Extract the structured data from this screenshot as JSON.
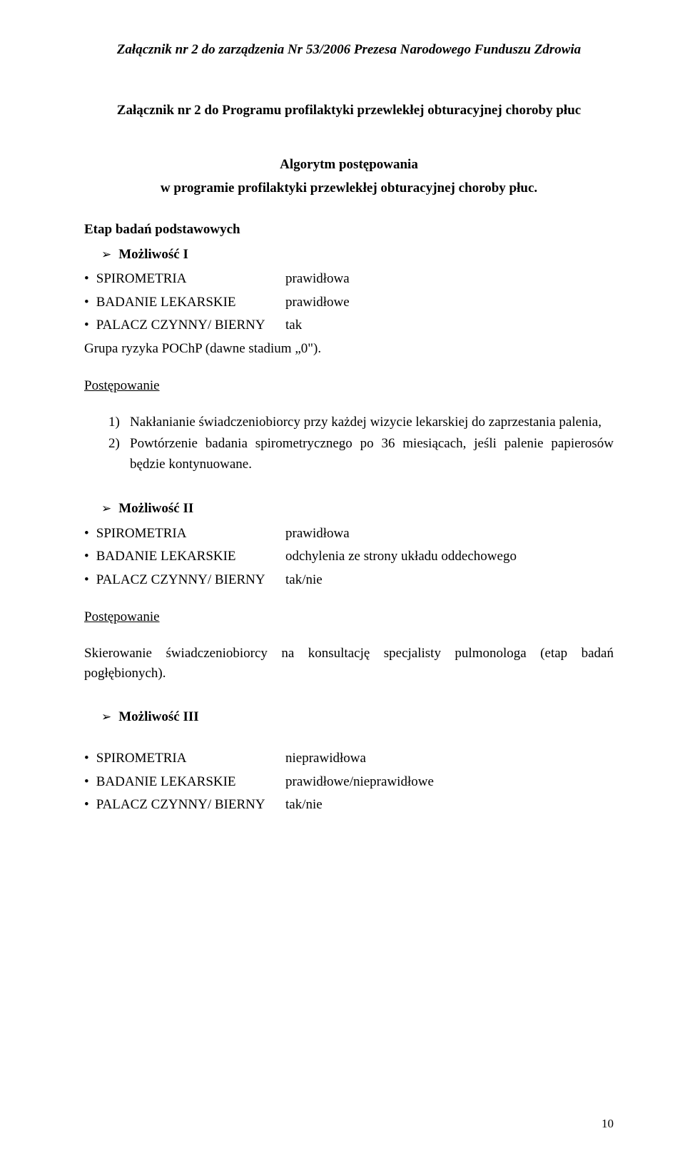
{
  "header": "Załącznik nr 2 do zarządzenia Nr 53/2006 Prezesa Narodowego Funduszu Zdrowia",
  "subheader": "Załącznik nr 2 do Programu profilaktyki przewlekłej obturacyjnej choroby płuc",
  "algo": {
    "title": "Algorytm postępowania",
    "subtitle": "w programie profilaktyki przewlekłej obturacyjnej choroby płuc."
  },
  "stage_heading": "Etap badań podstawowych",
  "options": {
    "opt1": {
      "label": "Możliwość I",
      "rows": [
        {
          "k": "SPIROMETRIA",
          "v": "prawidłowa"
        },
        {
          "k": "BADANIE LEKARSKIE",
          "v": "prawidłowe"
        },
        {
          "k": "PALACZ CZYNNY/ BIERNY",
          "v": "tak"
        }
      ],
      "extra_line": "Grupa ryzyka POChP (dawne stadium „0\")."
    },
    "opt2": {
      "label": "Możliwość II",
      "rows": [
        {
          "k": "SPIROMETRIA",
          "v": "prawidłowa"
        },
        {
          "k": "BADANIE LEKARSKIE",
          "v": "odchylenia ze strony układu oddechowego"
        },
        {
          "k": "PALACZ CZYNNY/ BIERNY",
          "v": "tak/nie"
        }
      ]
    },
    "opt3": {
      "label": "Możliwość III",
      "rows": [
        {
          "k": "SPIROMETRIA",
          "v": "nieprawidłowa"
        },
        {
          "k": "BADANIE LEKARSKIE",
          "v": "prawidłowe/nieprawidłowe"
        },
        {
          "k": "PALACZ CZYNNY/ BIERNY",
          "v": "tak/nie"
        }
      ]
    }
  },
  "procedure_label": "Postępowanie",
  "proc1": {
    "items": [
      "Nakłanianie świadczeniobiorcy przy każdej wizycie lekarskiej do zaprzestania palenia,",
      "Powtórzenie badania spirometrycznego po 36 miesiącach, jeśli palenie papierosów będzie kontynuowane."
    ]
  },
  "proc2_text": "Skierowanie świadczeniobiorcy na konsultację specjalisty pulmonologa (etap badań pogłębionych).",
  "bullet_char": "•",
  "chevron_char": "➢",
  "page_number": "10"
}
